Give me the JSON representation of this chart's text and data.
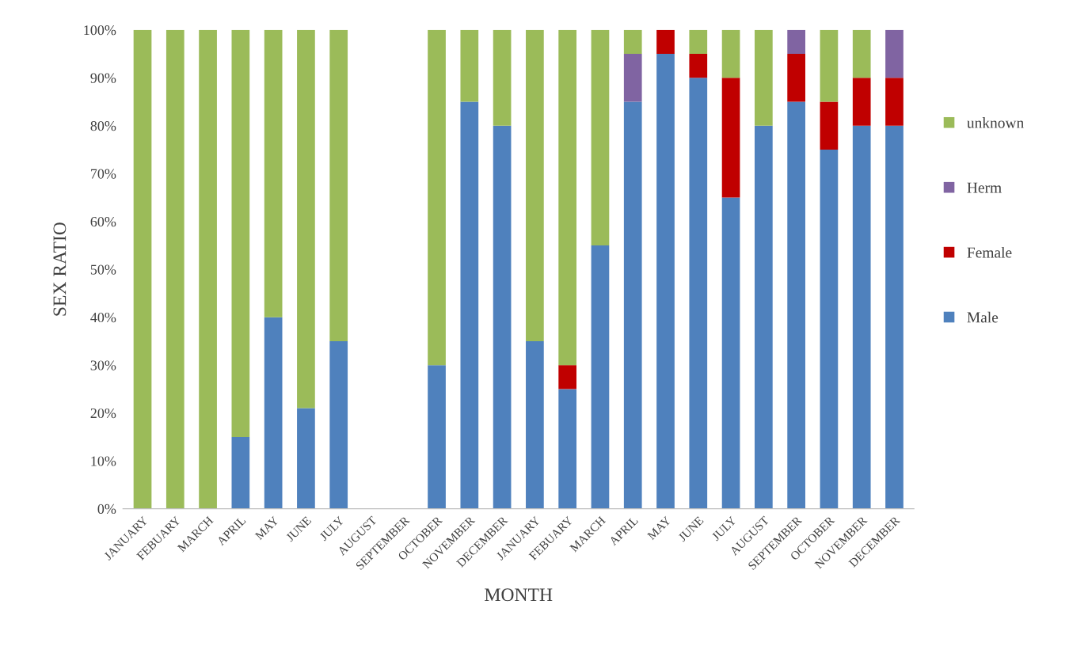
{
  "chart_data": {
    "type": "bar",
    "stacked": true,
    "xlabel": "MONTH",
    "ylabel": "SEX RATIO",
    "categories": [
      "JANUARY",
      "FEBUARY",
      "MARCH",
      "APRIL",
      "MAY",
      "JUNE",
      "JULY",
      "AUGUST",
      "SEPTEMBER",
      "OCTOBER",
      "NOVEMBER",
      "DECEMBER",
      "JANUARY",
      "FEBUARY",
      "MARCH",
      "APRIL",
      "MAY",
      "JUNE",
      "JULY",
      "AUGUST",
      "SEPTEMBER",
      "OCTOBER",
      "NOVEMBER",
      "DECEMBER"
    ],
    "series": [
      {
        "name": "Male",
        "color": "#4f81bd",
        "values": [
          0,
          0,
          0,
          15,
          40,
          21,
          35,
          0,
          0,
          30,
          85,
          80,
          35,
          25,
          55,
          85,
          95,
          90,
          65,
          80,
          85,
          75,
          80,
          80
        ]
      },
      {
        "name": "Female",
        "color": "#c00000",
        "values": [
          0,
          0,
          0,
          0,
          0,
          0,
          0,
          0,
          0,
          0,
          0,
          0,
          0,
          5,
          0,
          0,
          5,
          5,
          25,
          0,
          10,
          10,
          10,
          10
        ]
      },
      {
        "name": "Herm",
        "color": "#8064a2",
        "values": [
          0,
          0,
          0,
          0,
          0,
          0,
          0,
          0,
          0,
          0,
          0,
          0,
          0,
          0,
          0,
          10,
          0,
          0,
          0,
          0,
          5,
          0,
          0,
          10
        ]
      },
      {
        "name": "unknown",
        "color": "#9bbb59",
        "values": [
          100,
          100,
          100,
          85,
          60,
          79,
          65,
          0,
          0,
          70,
          15,
          20,
          65,
          70,
          45,
          5,
          0,
          5,
          10,
          20,
          0,
          15,
          10,
          0
        ]
      }
    ],
    "ylim": [
      0,
      100
    ],
    "yticks": [
      {
        "value": 0,
        "label": "0%"
      },
      {
        "value": 10,
        "label": "10%"
      },
      {
        "value": 20,
        "label": "20%"
      },
      {
        "value": 30,
        "label": "30%"
      },
      {
        "value": 40,
        "label": "40%"
      },
      {
        "value": 50,
        "label": "50%"
      },
      {
        "value": 60,
        "label": "60%"
      },
      {
        "value": 70,
        "label": "70%"
      },
      {
        "value": 80,
        "label": "80%"
      },
      {
        "value": 90,
        "label": "90%"
      },
      {
        "value": 100,
        "label": "100%"
      }
    ],
    "grid": false,
    "legend": "right"
  }
}
